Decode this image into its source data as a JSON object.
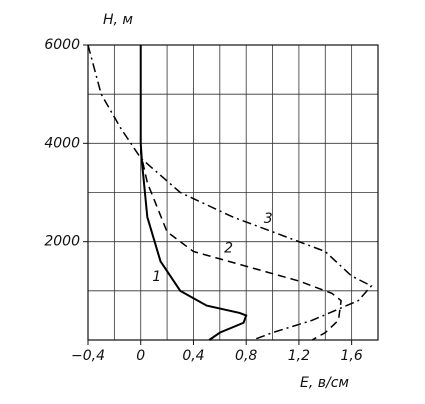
{
  "chart_data": {
    "type": "line",
    "y_label": "H, м",
    "x_label": "E, в/см",
    "xlim": [
      -0.4,
      1.8
    ],
    "ylim": [
      0,
      6000
    ],
    "xticks": [
      {
        "value": -0.4,
        "label": "−0,4"
      },
      0,
      {
        "value": 0.4,
        "label": "0,4"
      },
      {
        "value": 0.8,
        "label": "0,8"
      },
      {
        "value": 1.2,
        "label": "1,2"
      },
      {
        "value": 1.6,
        "label": "1,6"
      }
    ],
    "yticks": [
      2000,
      4000,
      6000
    ],
    "xgrid": [
      -0.2,
      0,
      0.2,
      0.4,
      0.6,
      0.8,
      1.0,
      1.2,
      1.4,
      1.6
    ],
    "ygrid": [
      1000,
      2000,
      3000,
      4000,
      5000
    ],
    "series": [
      {
        "name": "1",
        "color": "#000",
        "dash": "solid",
        "x": [
          0,
          0,
          0.01,
          0.05,
          0.15,
          0.3,
          0.5,
          0.75,
          0.8,
          0.78,
          0.6,
          0.52
        ],
        "y": [
          6000,
          4000,
          3600,
          2500,
          1600,
          1000,
          700,
          550,
          500,
          350,
          150,
          0
        ]
      },
      {
        "name": "2",
        "color": "#000",
        "dash": "dashed",
        "x": [
          0,
          0,
          0.05,
          0.2,
          0.4,
          0.8,
          1.2,
          1.45,
          1.52,
          1.5,
          1.4,
          1.3
        ],
        "y": [
          6000,
          3800,
          3200,
          2200,
          1800,
          1500,
          1200,
          950,
          800,
          400,
          150,
          0
        ]
      },
      {
        "name": "3",
        "color": "#000",
        "dash": "dashdot",
        "x": [
          -0.4,
          -0.3,
          -0.15,
          0,
          0.3,
          0.7,
          1.1,
          1.4,
          1.6,
          1.75,
          1.65,
          1.3,
          1.0,
          0.85
        ],
        "y": [
          6000,
          5000,
          4300,
          3700,
          3000,
          2500,
          2100,
          1800,
          1300,
          1100,
          800,
          400,
          150,
          0
        ]
      }
    ]
  }
}
